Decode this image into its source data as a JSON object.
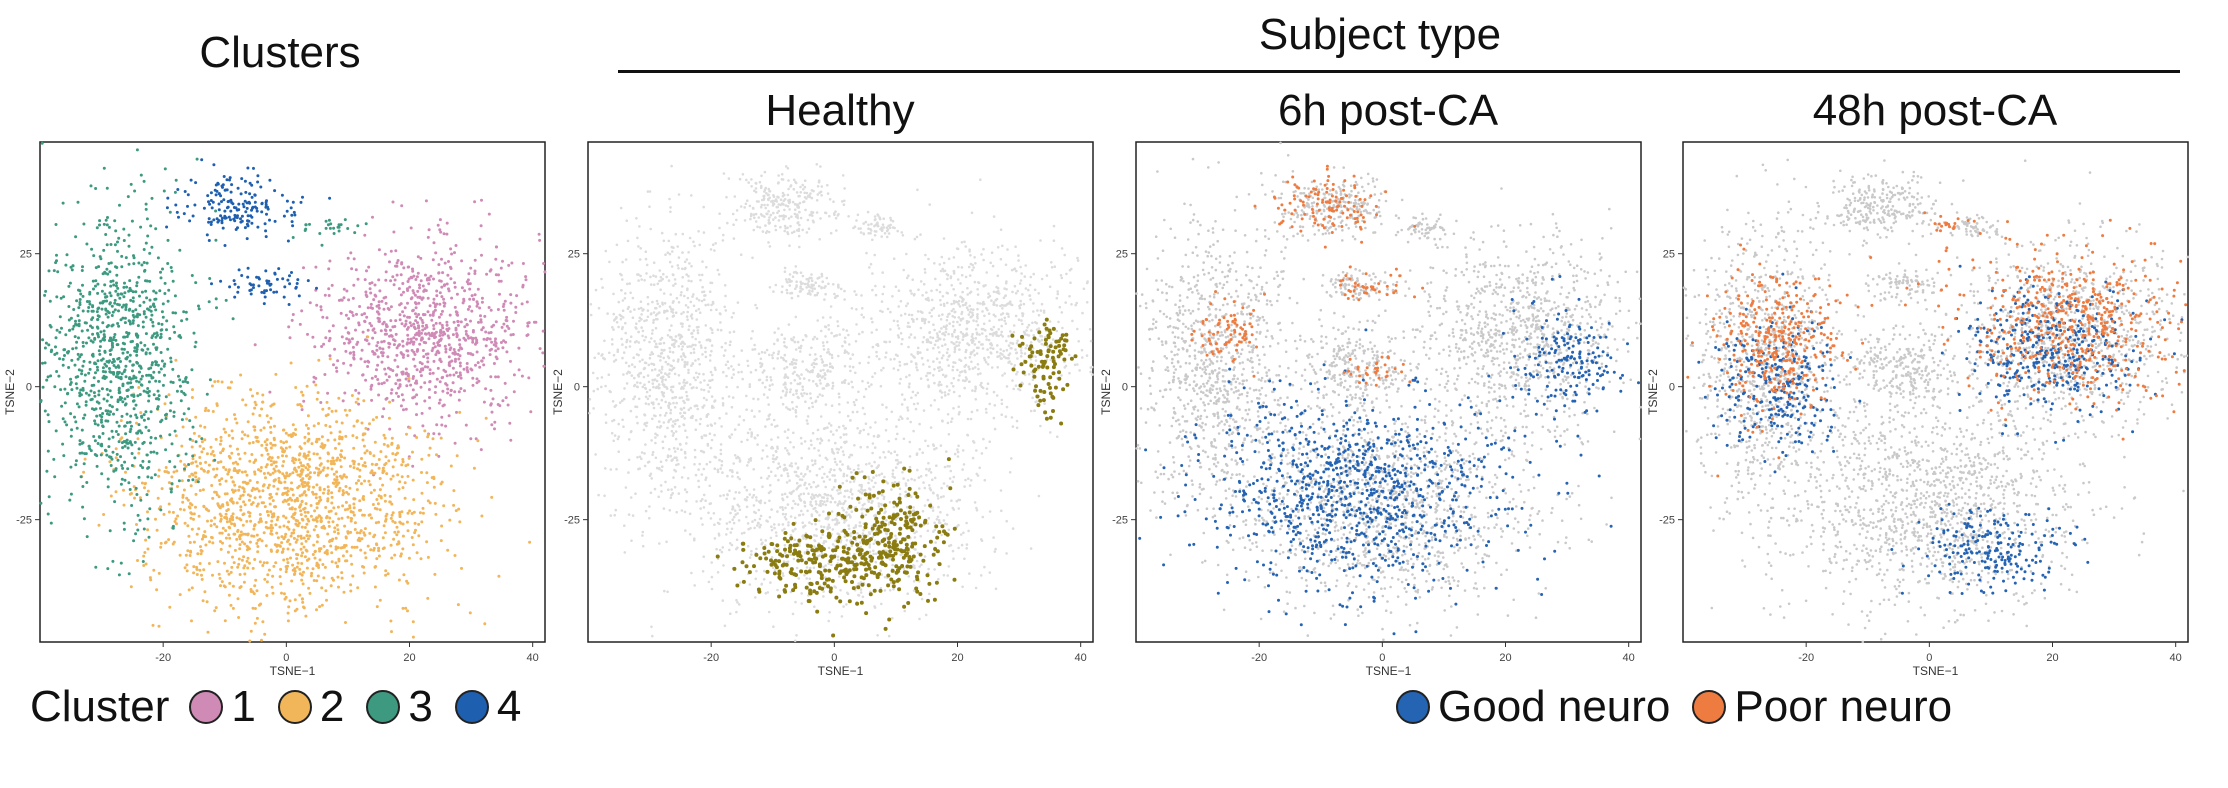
{
  "header": {
    "clusters_title": "Clusters",
    "group_title": "Subject type"
  },
  "colors": {
    "cluster_1": "#d08ab6",
    "cluster_2": "#f2b65a",
    "cluster_3": "#3d9a80",
    "cluster_4": "#1f5fb0",
    "healthy": "#8a7c10",
    "good_neuro": "#2563b3",
    "poor_neuro": "#ee7c41",
    "background": "#c9c9c9",
    "background_light": "#dcdcdc"
  },
  "legend_clusters": {
    "title": "Cluster",
    "items": [
      "1",
      "2",
      "3",
      "4"
    ]
  },
  "legend_outcome": {
    "items": [
      "Good neuro",
      "Poor neuro"
    ]
  },
  "chart_data": [
    {
      "type": "scatter",
      "title": "Clusters",
      "xlabel": "TSNE−1",
      "ylabel": "TSNE−2",
      "xticks": [
        -20,
        0,
        20,
        40
      ],
      "yticks": [
        -25,
        0,
        25
      ],
      "xlim": [
        -40,
        42
      ],
      "ylim": [
        -48,
        46
      ],
      "grid": false,
      "series": [
        {
          "name": "1",
          "color": "#d08ab6",
          "regions": [
            {
              "cx": 23,
              "cy": 10,
              "rx": 17,
              "ry": 17
            }
          ]
        },
        {
          "name": "2",
          "color": "#f2b65a",
          "regions": [
            {
              "cx": 0,
              "cy": -22,
              "rx": 24,
              "ry": 20
            }
          ]
        },
        {
          "name": "3",
          "color": "#3d9a80",
          "regions": [
            {
              "cx": -27,
              "cy": 5,
              "rx": 12,
              "ry": 26
            },
            {
              "cx": 7,
              "cy": 30,
              "rx": 4,
              "ry": 2
            }
          ]
        },
        {
          "name": "4",
          "color": "#1f5fb0",
          "regions": [
            {
              "cx": -8,
              "cy": 34,
              "rx": 9,
              "ry": 6
            },
            {
              "cx": -4,
              "cy": 19,
              "rx": 6,
              "ry": 3
            }
          ]
        }
      ]
    },
    {
      "type": "scatter",
      "title": "Healthy",
      "xlabel": "TSNE−1",
      "ylabel": "TSNE−2",
      "xticks": [
        -20,
        0,
        20,
        40
      ],
      "yticks": [
        -25,
        0,
        25
      ],
      "xlim": [
        -40,
        42
      ],
      "ylim": [
        -48,
        46
      ],
      "grid": false,
      "series": [
        {
          "name": "Healthy",
          "color": "#8a7c10",
          "regions": [
            {
              "cx": 9,
              "cy": -30,
              "rx": 9,
              "ry": 12
            },
            {
              "cx": -2,
              "cy": -33,
              "rx": 14,
              "ry": 7
            },
            {
              "cx": 34,
              "cy": 3,
              "rx": 4,
              "ry": 8
            },
            {
              "cx": 36,
              "cy": 8,
              "rx": 3,
              "ry": 4
            }
          ]
        }
      ]
    },
    {
      "type": "scatter",
      "title": "6h post-CA",
      "xlabel": "TSNE−1",
      "ylabel": "TSNE−2",
      "xticks": [
        -20,
        0,
        20,
        40
      ],
      "yticks": [
        -25,
        0,
        25
      ],
      "xlim": [
        -40,
        42
      ],
      "ylim": [
        -48,
        46
      ],
      "grid": false,
      "series": [
        {
          "name": "Good neuro",
          "color": "#2563b3",
          "regions": [
            {
              "cx": -4,
              "cy": -20,
              "rx": 24,
              "ry": 18
            },
            {
              "cx": 30,
              "cy": 5,
              "rx": 8,
              "ry": 10
            }
          ]
        },
        {
          "name": "Poor neuro",
          "color": "#ee7c41",
          "regions": [
            {
              "cx": -8,
              "cy": 34,
              "rx": 9,
              "ry": 6
            },
            {
              "cx": -3,
              "cy": 19,
              "rx": 6,
              "ry": 3
            },
            {
              "cx": -1,
              "cy": 3,
              "rx": 5,
              "ry": 3
            },
            {
              "cx": -25,
              "cy": 10,
              "rx": 6,
              "ry": 6
            }
          ]
        }
      ]
    },
    {
      "type": "scatter",
      "title": "48h post-CA",
      "xlabel": "TSNE−1",
      "ylabel": "TSNE−2",
      "xticks": [
        -20,
        0,
        20,
        40
      ],
      "yticks": [
        -25,
        0,
        25
      ],
      "xlim": [
        -40,
        42
      ],
      "ylim": [
        -48,
        46
      ],
      "grid": false,
      "series": [
        {
          "name": "Good neuro",
          "color": "#2563b3",
          "regions": [
            {
              "cx": -25,
              "cy": 0,
              "rx": 10,
              "ry": 12
            },
            {
              "cx": 20,
              "cy": 7,
              "rx": 14,
              "ry": 12
            },
            {
              "cx": 10,
              "cy": -30,
              "rx": 12,
              "ry": 8
            }
          ]
        },
        {
          "name": "Poor neuro",
          "color": "#ee7c41",
          "regions": [
            {
              "cx": 23,
              "cy": 12,
              "rx": 17,
              "ry": 14
            },
            {
              "cx": -25,
              "cy": 8,
              "rx": 11,
              "ry": 14
            },
            {
              "cx": 4,
              "cy": 31,
              "rx": 4,
              "ry": 2
            }
          ]
        }
      ]
    }
  ]
}
